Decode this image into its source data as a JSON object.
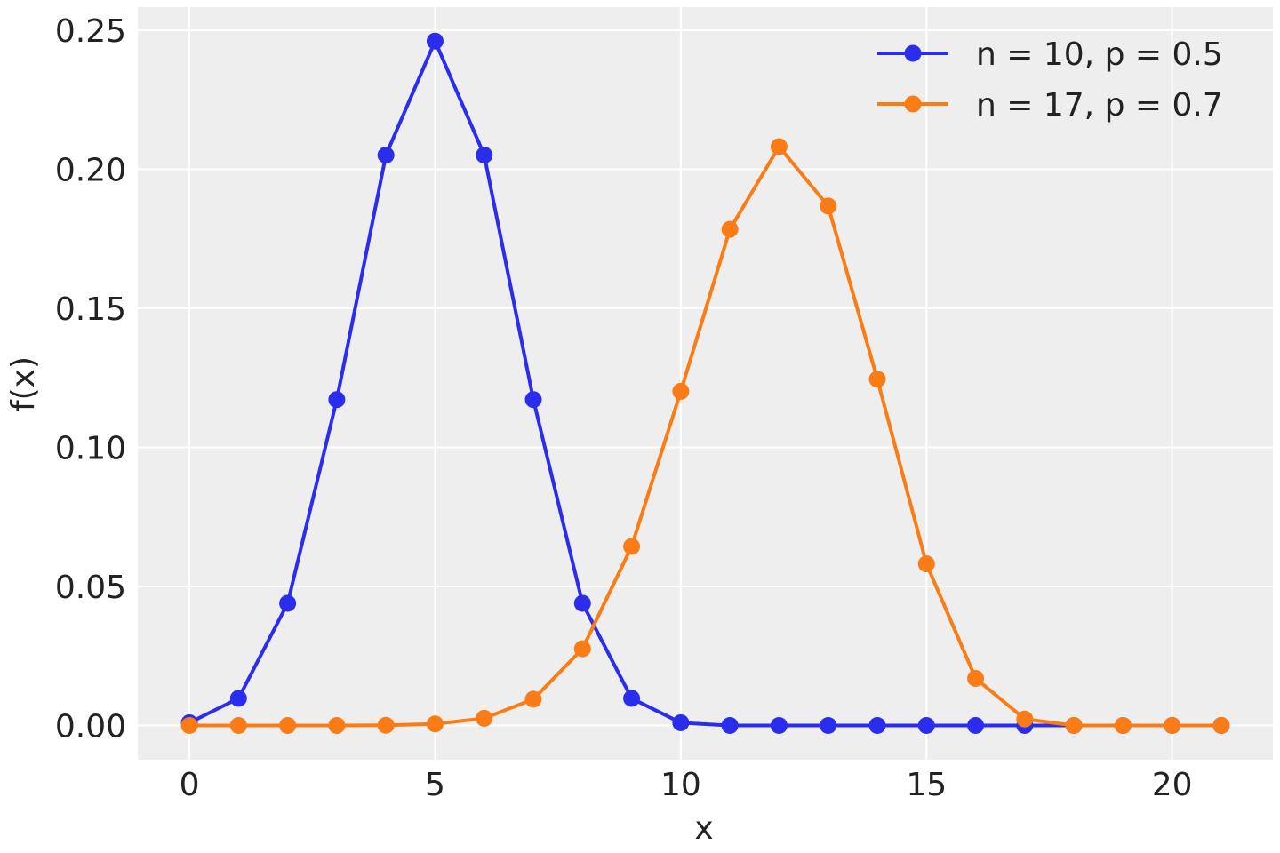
{
  "chart_data": {
    "type": "line",
    "title": "",
    "xlabel": "x",
    "ylabel": "f(x)",
    "xlim": [
      -1.05,
      22.05
    ],
    "ylim": [
      -0.0123,
      0.2583
    ],
    "xticks": [
      0,
      5,
      10,
      15,
      20
    ],
    "xtick_labels": [
      "0",
      "5",
      "10",
      "15",
      "20"
    ],
    "yticks": [
      0,
      0.05,
      0.1,
      0.15,
      0.2,
      0.25
    ],
    "ytick_labels": [
      "0.00",
      "0.05",
      "0.10",
      "0.15",
      "0.20",
      "0.25"
    ],
    "grid": true,
    "background": "#eeeeee",
    "legend_position": "top-right",
    "x": [
      0,
      1,
      2,
      3,
      4,
      5,
      6,
      7,
      8,
      9,
      10,
      11,
      12,
      13,
      14,
      15,
      16,
      17,
      18,
      19,
      20,
      21
    ],
    "series": [
      {
        "name": "n = 10, p = 0.5",
        "color": "#2a2eec",
        "marker": "circle",
        "values": [
          0.000977,
          0.009766,
          0.043945,
          0.117188,
          0.205078,
          0.246094,
          0.205078,
          0.117188,
          0.043945,
          0.009766,
          0.000977,
          0,
          0,
          0,
          0,
          0,
          0,
          0,
          0,
          0,
          0,
          0
        ]
      },
      {
        "name": "n = 17, p = 0.7",
        "color": "#fa7c17",
        "marker": "circle",
        "values": [
          1.3e-09,
          5e-08,
          9.6e-07,
          1.12e-05,
          9.11e-05,
          0.000553,
          0.002579,
          0.009457,
          0.027584,
          0.064365,
          0.12015,
          0.1784,
          0.20813,
          0.18678,
          0.12452,
          0.05811,
          0.016947,
          0.002326,
          0,
          0,
          0,
          0
        ]
      }
    ]
  }
}
